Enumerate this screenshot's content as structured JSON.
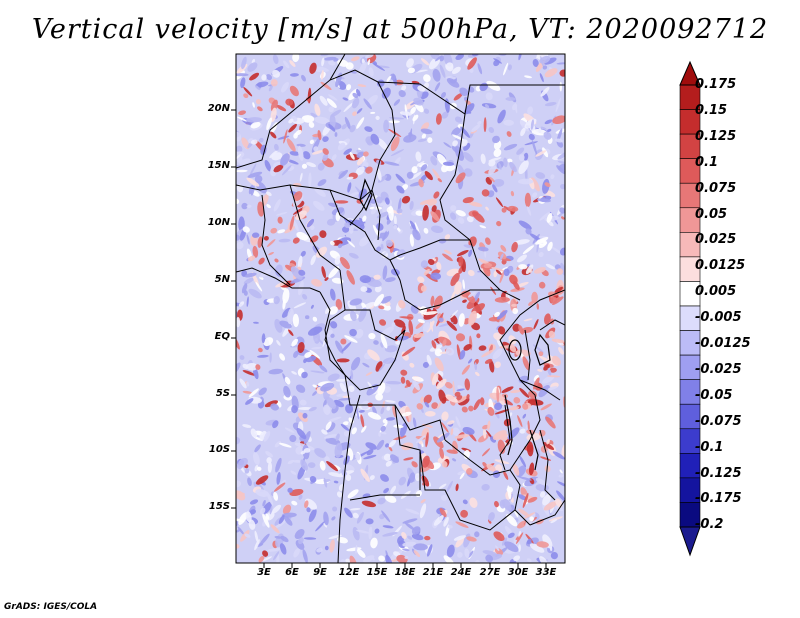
{
  "title": "Vertical velocity [m/s] at 500hPa, VT: 2020092712",
  "credit": "GrADS: IGES/COLA",
  "lat_labels": [
    "20N",
    "15N",
    "10N",
    "5N",
    "EQ",
    "5S",
    "10S",
    "15S"
  ],
  "lon_labels": [
    "3E",
    "6E",
    "9E",
    "12E",
    "15E",
    "18E",
    "21E",
    "24E",
    "27E",
    "30E",
    "33E"
  ],
  "colorbar": {
    "labels": [
      "0.175",
      "0.15",
      "0.125",
      "0.1",
      "0.075",
      "0.05",
      "0.025",
      "0.0125",
      "0.005",
      "-0.005",
      "-0.0125",
      "-0.025",
      "-0.05",
      "-0.075",
      "-0.1",
      "-0.125",
      "-0.175",
      "-0.2"
    ],
    "colors": [
      "#a00d0d",
      "#b41d1d",
      "#c42d2d",
      "#d24343",
      "#de5a5a",
      "#e77777",
      "#f09797",
      "#f7b9b9",
      "#fcdede",
      "#ffffff",
      "#dcdcfc",
      "#bcbcf7",
      "#9f9ff1",
      "#8080e8",
      "#5f5fdd",
      "#3c3ccd",
      "#2020b8",
      "#14149f",
      "#0a0a80"
    ]
  }
}
